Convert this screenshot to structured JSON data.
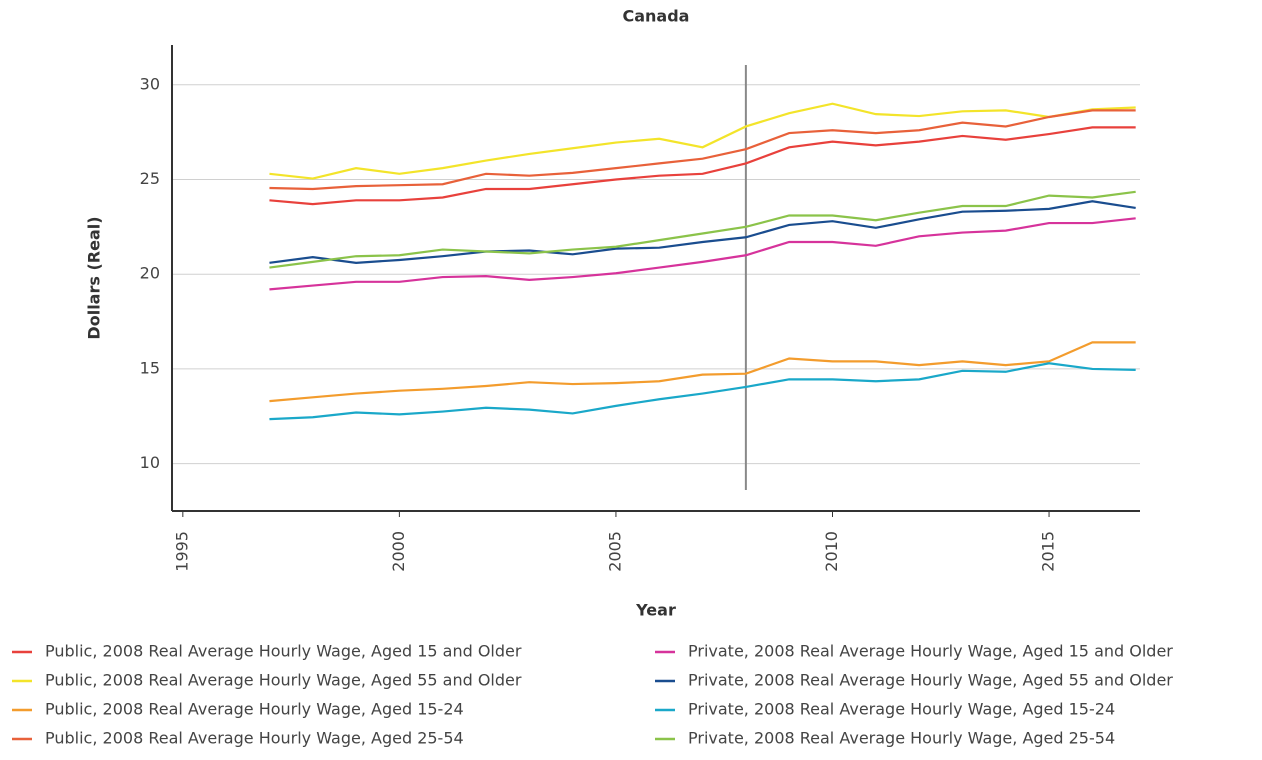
{
  "chart_data": {
    "type": "line",
    "title": "Canada",
    "x_label": "Year",
    "y_label": "Dollars (Real)",
    "x": [
      1997,
      1998,
      1999,
      2000,
      2001,
      2002,
      2003,
      2004,
      2005,
      2006,
      2007,
      2008,
      2009,
      2010,
      2011,
      2012,
      2013,
      2014,
      2015,
      2016,
      2017
    ],
    "xlim": [
      1994.75,
      2017.1
    ],
    "xticks": [
      1995,
      2000,
      2005,
      2010,
      2015
    ],
    "ylim": [
      7.5,
      32.1
    ],
    "yticks": [
      10,
      15,
      20,
      25,
      30
    ],
    "grid": true,
    "vline": 2008,
    "series": [
      {
        "name": "Public, 2008 Real Average Hourly Wage, Aged 15 and Older",
        "color": "#e8413c",
        "values": [
          23.9,
          23.7,
          23.9,
          23.9,
          24.05,
          24.5,
          24.5,
          24.75,
          25.0,
          25.2,
          25.3,
          25.85,
          26.7,
          27.0,
          26.8,
          27.0,
          27.3,
          27.1,
          27.4,
          27.75,
          27.75
        ]
      },
      {
        "name": "Public, 2008 Real Average Hourly Wage, Aged 55 and Older",
        "color": "#f3e42a",
        "values": [
          25.3,
          25.05,
          25.6,
          25.3,
          25.6,
          26.0,
          26.35,
          26.65,
          26.95,
          27.15,
          26.7,
          27.8,
          28.5,
          29.0,
          28.45,
          28.35,
          28.6,
          28.65,
          28.3,
          28.7,
          28.8
        ]
      },
      {
        "name": "Public, 2008 Real Average Hourly Wage, Aged 15-24",
        "color": "#f39c2d",
        "values": [
          13.3,
          13.5,
          13.7,
          13.85,
          13.95,
          14.1,
          14.3,
          14.2,
          14.25,
          14.35,
          14.7,
          14.75,
          15.55,
          15.4,
          15.4,
          15.2,
          15.4,
          15.2,
          15.4,
          16.4,
          16.4
        ]
      },
      {
        "name": "Public, 2008 Real Average Hourly Wage, Aged 25-54",
        "color": "#e8613a",
        "values": [
          24.55,
          24.5,
          24.65,
          24.7,
          24.75,
          25.3,
          25.2,
          25.35,
          25.6,
          25.85,
          26.1,
          26.6,
          27.45,
          27.6,
          27.45,
          27.6,
          28.0,
          27.8,
          28.3,
          28.65,
          28.65
        ]
      },
      {
        "name": "Private, 2008 Real Average Hourly Wage, Aged 15 and Older",
        "color": "#d6339b",
        "values": [
          19.2,
          19.4,
          19.6,
          19.6,
          19.85,
          19.9,
          19.7,
          19.85,
          20.05,
          20.35,
          20.65,
          21.0,
          21.7,
          21.7,
          21.5,
          22.0,
          22.2,
          22.3,
          22.7,
          22.7,
          22.95
        ]
      },
      {
        "name": "Private, 2008 Real Average Hourly Wage, Aged 55 and Older",
        "color": "#1a4d8f",
        "values": [
          20.6,
          20.9,
          20.6,
          20.75,
          20.95,
          21.2,
          21.25,
          21.05,
          21.35,
          21.4,
          21.7,
          21.95,
          22.6,
          22.8,
          22.45,
          22.9,
          23.3,
          23.35,
          23.45,
          23.85,
          23.5
        ]
      },
      {
        "name": "Private, 2008 Real Average Hourly Wage, Aged 15-24",
        "color": "#1aa8c9",
        "values": [
          12.35,
          12.45,
          12.7,
          12.6,
          12.75,
          12.95,
          12.85,
          12.65,
          13.05,
          13.4,
          13.7,
          14.05,
          14.45,
          14.45,
          14.35,
          14.45,
          14.9,
          14.85,
          15.3,
          15.0,
          14.95
        ]
      },
      {
        "name": "Private, 2008 Real Average Hourly Wage, Aged 25-54",
        "color": "#8bc34a",
        "values": [
          20.35,
          20.65,
          20.95,
          21.0,
          21.3,
          21.2,
          21.1,
          21.3,
          21.45,
          21.8,
          22.15,
          22.5,
          23.1,
          23.1,
          22.85,
          23.25,
          23.6,
          23.6,
          24.15,
          24.05,
          24.35
        ]
      }
    ]
  }
}
